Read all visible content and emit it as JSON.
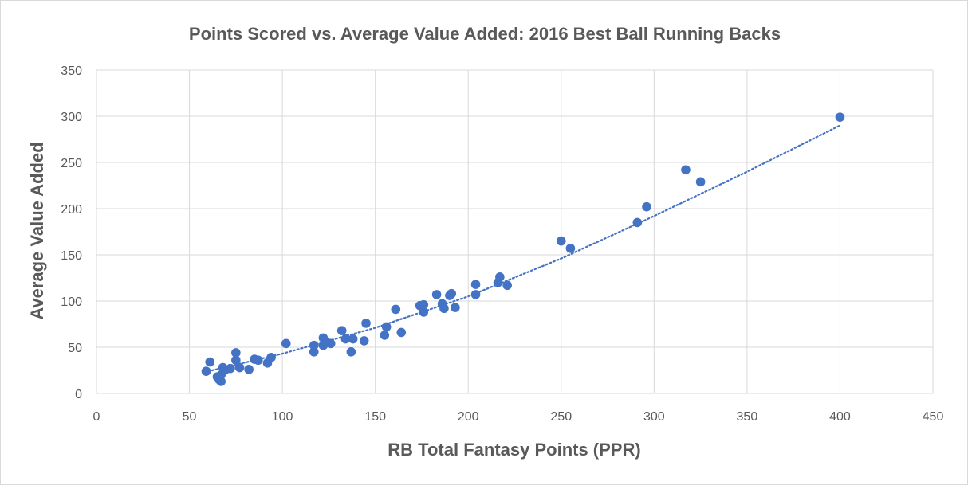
{
  "chart_data": {
    "type": "scatter",
    "title": "Points Scored vs. Average Value Added: 2016 Best Ball Running Backs",
    "xlabel": "RB Total Fantasy Points (PPR)",
    "ylabel": "Average Value Added",
    "xlim": [
      0,
      450
    ],
    "ylim": [
      0,
      350
    ],
    "x_ticks": [
      "0",
      "50",
      "100",
      "150",
      "200",
      "250",
      "300",
      "350",
      "400",
      "450"
    ],
    "y_ticks": [
      "0",
      "50",
      "100",
      "150",
      "200",
      "250",
      "300",
      "350"
    ],
    "grid": true,
    "legend": "none",
    "colors": {
      "marker": "#4472c4",
      "trendline": "#4472c4",
      "grid": "#d9d9d9",
      "text": "#595959"
    },
    "series": [
      {
        "name": "RB",
        "points": [
          [
            59,
            24
          ],
          [
            61,
            34
          ],
          [
            65,
            18
          ],
          [
            66,
            15
          ],
          [
            67,
            13
          ],
          [
            67,
            20
          ],
          [
            68,
            28
          ],
          [
            69,
            25
          ],
          [
            72,
            27
          ],
          [
            75,
            36
          ],
          [
            75,
            44
          ],
          [
            77,
            28
          ],
          [
            82,
            26
          ],
          [
            85,
            37
          ],
          [
            87,
            36
          ],
          [
            92,
            33
          ],
          [
            94,
            39
          ],
          [
            102,
            54
          ],
          [
            117,
            52
          ],
          [
            117,
            45
          ],
          [
            122,
            60
          ],
          [
            122,
            52
          ],
          [
            124,
            55
          ],
          [
            126,
            54
          ],
          [
            132,
            68
          ],
          [
            134,
            59
          ],
          [
            137,
            45
          ],
          [
            138,
            59
          ],
          [
            144,
            57
          ],
          [
            145,
            76
          ],
          [
            155,
            63
          ],
          [
            156,
            72
          ],
          [
            161,
            91
          ],
          [
            164,
            66
          ],
          [
            174,
            95
          ],
          [
            176,
            88
          ],
          [
            176,
            96
          ],
          [
            183,
            107
          ],
          [
            186,
            97
          ],
          [
            187,
            92
          ],
          [
            190,
            106
          ],
          [
            191,
            108
          ],
          [
            193,
            93
          ],
          [
            204,
            118
          ],
          [
            204,
            107
          ],
          [
            216,
            120
          ],
          [
            217,
            126
          ],
          [
            221,
            117
          ],
          [
            250,
            165
          ],
          [
            255,
            157
          ],
          [
            291,
            185
          ],
          [
            296,
            202
          ],
          [
            317,
            242
          ],
          [
            325,
            229
          ],
          [
            400,
            299
          ]
        ]
      }
    ],
    "trendline": {
      "style": "dotted",
      "points": [
        [
          60,
          24
        ],
        [
          100,
          43
        ],
        [
          150,
          71
        ],
        [
          200,
          105
        ],
        [
          250,
          146
        ],
        [
          300,
          192
        ],
        [
          350,
          240
        ],
        [
          400,
          290
        ]
      ]
    }
  }
}
